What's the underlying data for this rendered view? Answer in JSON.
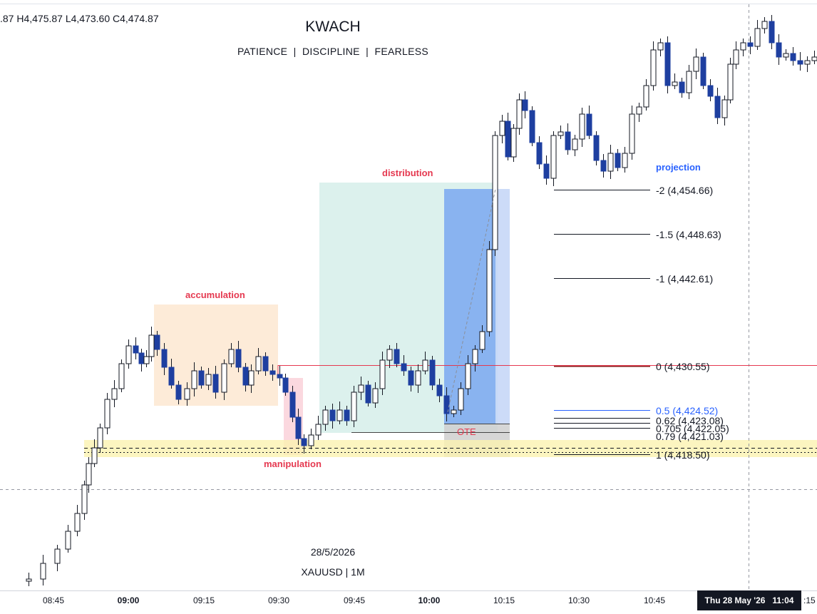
{
  "header": {
    "ohlc": ".87 H4,475.87 L4,473.60 C4,474.87",
    "title": "KWACH",
    "subtitle": "PATIENCE  |  DISCIPLINE  |  FEARLESS"
  },
  "watermark": {
    "date": "28/5/2026",
    "symbol": "XAUUSD | 1M"
  },
  "annotations": {
    "accumulation": "accumulation",
    "manipulation": "manipulation",
    "distribution": "distribution",
    "ote": "OTE",
    "projection": "projection"
  },
  "fib_levels": [
    {
      "label": "-2 (4,454.66)",
      "price": 4454.66
    },
    {
      "label": "-1.5 (4,448.63)",
      "price": 4448.63
    },
    {
      "label": "-1 (4,442.61)",
      "price": 4442.61
    },
    {
      "label": "0 (4,430.55)",
      "price": 4430.55
    },
    {
      "label": "0.5 (4,424.52)",
      "price": 4424.52
    },
    {
      "label": "0.62 (4,423.08)",
      "price": 4423.08
    },
    {
      "label": "0.705 (4,422.05)",
      "price": 4422.05
    },
    {
      "label": "0.79 (4,421.03)",
      "price": 4421.03
    },
    {
      "label": "1 (4,418.50)",
      "price": 4418.5
    }
  ],
  "x_axis": {
    "ticks": [
      {
        "label": "08:45",
        "bold": false
      },
      {
        "label": "09:00",
        "bold": true
      },
      {
        "label": "09:15",
        "bold": false
      },
      {
        "label": "09:30",
        "bold": false
      },
      {
        "label": "09:45",
        "bold": false
      },
      {
        "label": "10:00",
        "bold": true
      },
      {
        "label": "10:15",
        "bold": false
      },
      {
        "label": "10:30",
        "bold": false
      },
      {
        "label": "10:45",
        "bold": false
      }
    ],
    "crosshair_label": "Thu 28 May '26   11:04",
    "right_tick": ":15"
  },
  "colors": {
    "bull_candle": "#ffffff",
    "bear_candle": "#1e3fa0",
    "accumulation_zone": "#fde9d4",
    "manipulation_zone": "#fbd4dc",
    "distribution_zone": "#d6efea",
    "projection_zone": "#6d9ef0",
    "liquidity_band": "#fbf2b0",
    "red_line": "#e53950",
    "blue_text": "#2962ff"
  }
}
